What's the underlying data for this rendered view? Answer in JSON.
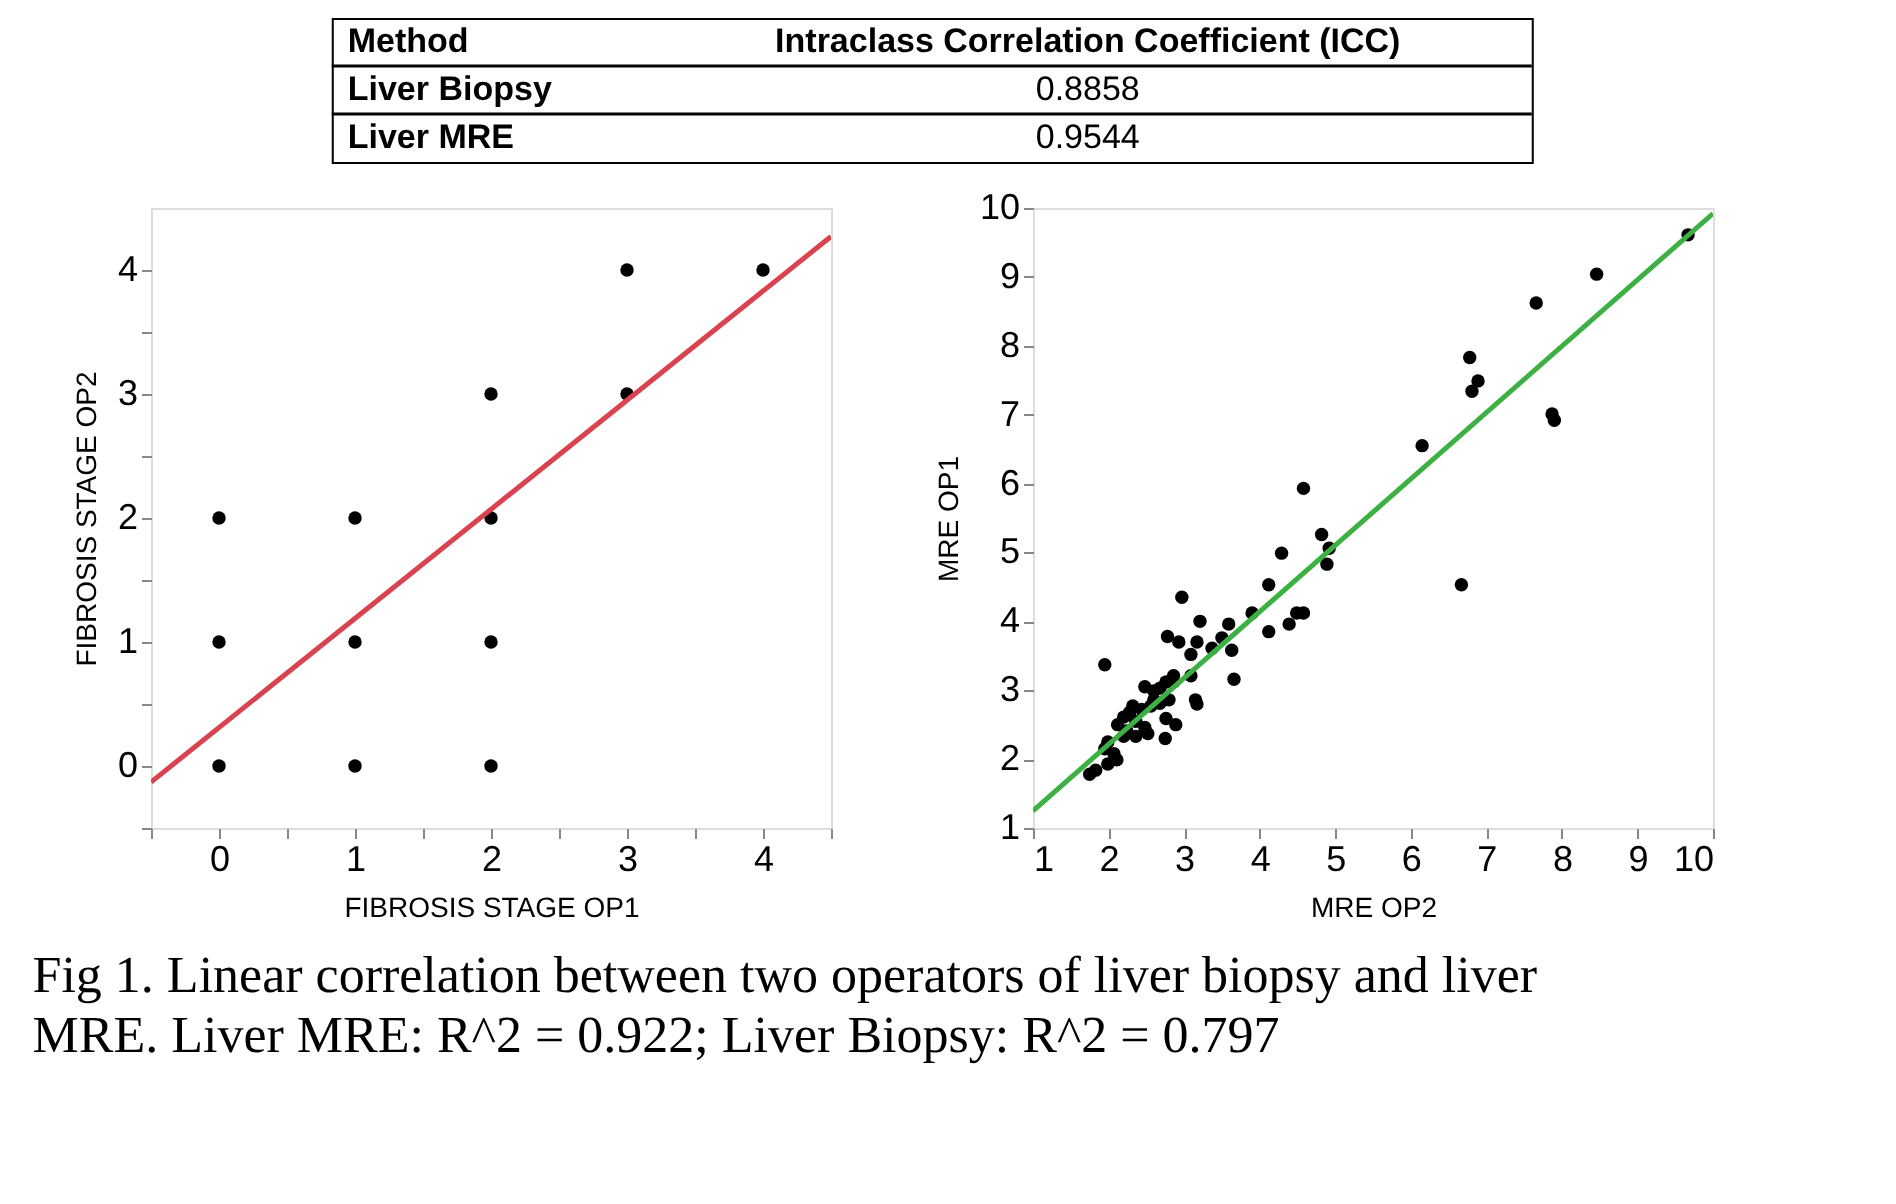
{
  "chart_data": [
    {
      "type": "other",
      "xlabel": "Method",
      "ylabel": "Intraclass Correlation Coefficient (ICC)",
      "categories": [
        "Liver Biopsy",
        "Liver MRE"
      ],
      "values": [
        0.8858,
        0.9544
      ],
      "data_labels": true
    },
    {
      "type": "scatter",
      "xlabel": "FIBROSIS STAGE OP1",
      "ylabel": "FIBROSIS STAGE OP2",
      "xlim": [
        -0.5,
        4.5
      ],
      "ylim": [
        -0.5,
        4.5
      ],
      "xticks": [
        {
          "value": -0.5,
          "label": null
        },
        0,
        {
          "value": 0.5,
          "label": null
        },
        1,
        {
          "value": 1.5,
          "label": null
        },
        2,
        {
          "value": 2.5,
          "label": null
        },
        3,
        {
          "value": 3.5,
          "label": null
        },
        4,
        {
          "value": 4.5,
          "label": null
        }
      ],
      "yticks": [
        {
          "value": -0.5,
          "label": null
        },
        0,
        {
          "value": 0.5,
          "label": null
        },
        1,
        {
          "value": 1.5,
          "label": null
        },
        2,
        {
          "value": 2.5,
          "label": null
        },
        3,
        {
          "value": 3.5,
          "label": null
        },
        4
      ],
      "grid": false,
      "series": [
        {
          "type": "scatter",
          "marker": "circle",
          "color": "#000000",
          "x": [
            0,
            0,
            0,
            1,
            1,
            1,
            2,
            2,
            2,
            2,
            3,
            3,
            4
          ],
          "values": [
            0,
            1,
            2,
            0,
            1,
            2,
            0,
            1,
            2,
            3,
            3,
            4,
            4
          ]
        },
        {
          "type": "line",
          "marker": "none",
          "line_style": "solid",
          "color": "#d9434f",
          "x": [
            -0.5,
            4.5
          ],
          "values": [
            -0.13,
            4.27
          ]
        }
      ]
    },
    {
      "type": "scatter",
      "xlabel": "MRE OP2",
      "ylabel": "MRE OP1",
      "xlim": [
        1,
        10
      ],
      "ylim": [
        1,
        10
      ],
      "xticks": [
        1,
        2,
        3,
        4,
        5,
        6,
        7,
        8,
        9,
        10
      ],
      "yticks": [
        1,
        2,
        3,
        4,
        5,
        6,
        7,
        8,
        9,
        10
      ],
      "grid": false,
      "annotations": [
        "Fig 1. Linear correlation between two operators of liver biopsy and liver MRE. Liver MRE: R^2 = 0.922; Liver Biopsy: R^2 = 0.797"
      ],
      "series": [
        {
          "type": "scatter",
          "marker": "circle",
          "color": "#000000",
          "x": [
            9.67,
            8.46,
            7.66,
            6.78,
            6.89,
            6.81,
            7.87,
            7.9,
            6.15,
            4.58,
            4.82,
            4.92,
            4.89,
            6.67,
            4.29,
            4.12,
            4.12,
            3.9,
            4.39,
            4.49,
            4.58,
            2.97,
            3.21,
            3.59,
            3.5,
            3.37,
            3.63,
            3.66,
            3.17,
            3.09,
            2.78,
            2.93,
            1.95,
            3.15,
            3.17,
            3.09,
            2.86,
            2.76,
            2.68,
            2.6,
            2.48,
            2.8,
            2.68,
            2.56,
            2.44,
            2.32,
            2.28,
            2.2,
            2.12,
            2.36,
            2.48,
            2.24,
            2.36,
            2.76,
            2.89,
            2.75,
            2.52,
            1.99,
            1.95,
            2.07,
            1.99,
            2.11,
            1.83,
            1.75,
            2.6,
            2.86,
            2.2
          ],
          "values": [
            9.61,
            9.04,
            8.62,
            7.83,
            7.49,
            7.34,
            7.01,
            6.92,
            6.55,
            5.93,
            5.26,
            5.06,
            4.83,
            4.53,
            4.99,
            4.53,
            3.85,
            4.12,
            3.96,
            4.12,
            4.12,
            4.35,
            4.0,
            3.96,
            3.76,
            3.61,
            3.58,
            3.16,
            3.7,
            3.52,
            3.78,
            3.7,
            3.37,
            2.86,
            2.8,
            3.21,
            3.21,
            3.12,
            3.03,
            2.99,
            3.05,
            2.86,
            2.81,
            2.77,
            2.72,
            2.77,
            2.68,
            2.61,
            2.5,
            2.55,
            2.46,
            2.41,
            2.33,
            2.59,
            2.5,
            2.3,
            2.37,
            2.25,
            2.15,
            2.08,
            1.93,
            1.99,
            1.84,
            1.78,
            2.86,
            3.12,
            2.33
          ]
        },
        {
          "type": "line",
          "marker": "none",
          "line_style": "solid",
          "color": "#3cb043",
          "x": [
            1,
            10
          ],
          "values": [
            1.25,
            9.92
          ]
        }
      ]
    }
  ]
}
